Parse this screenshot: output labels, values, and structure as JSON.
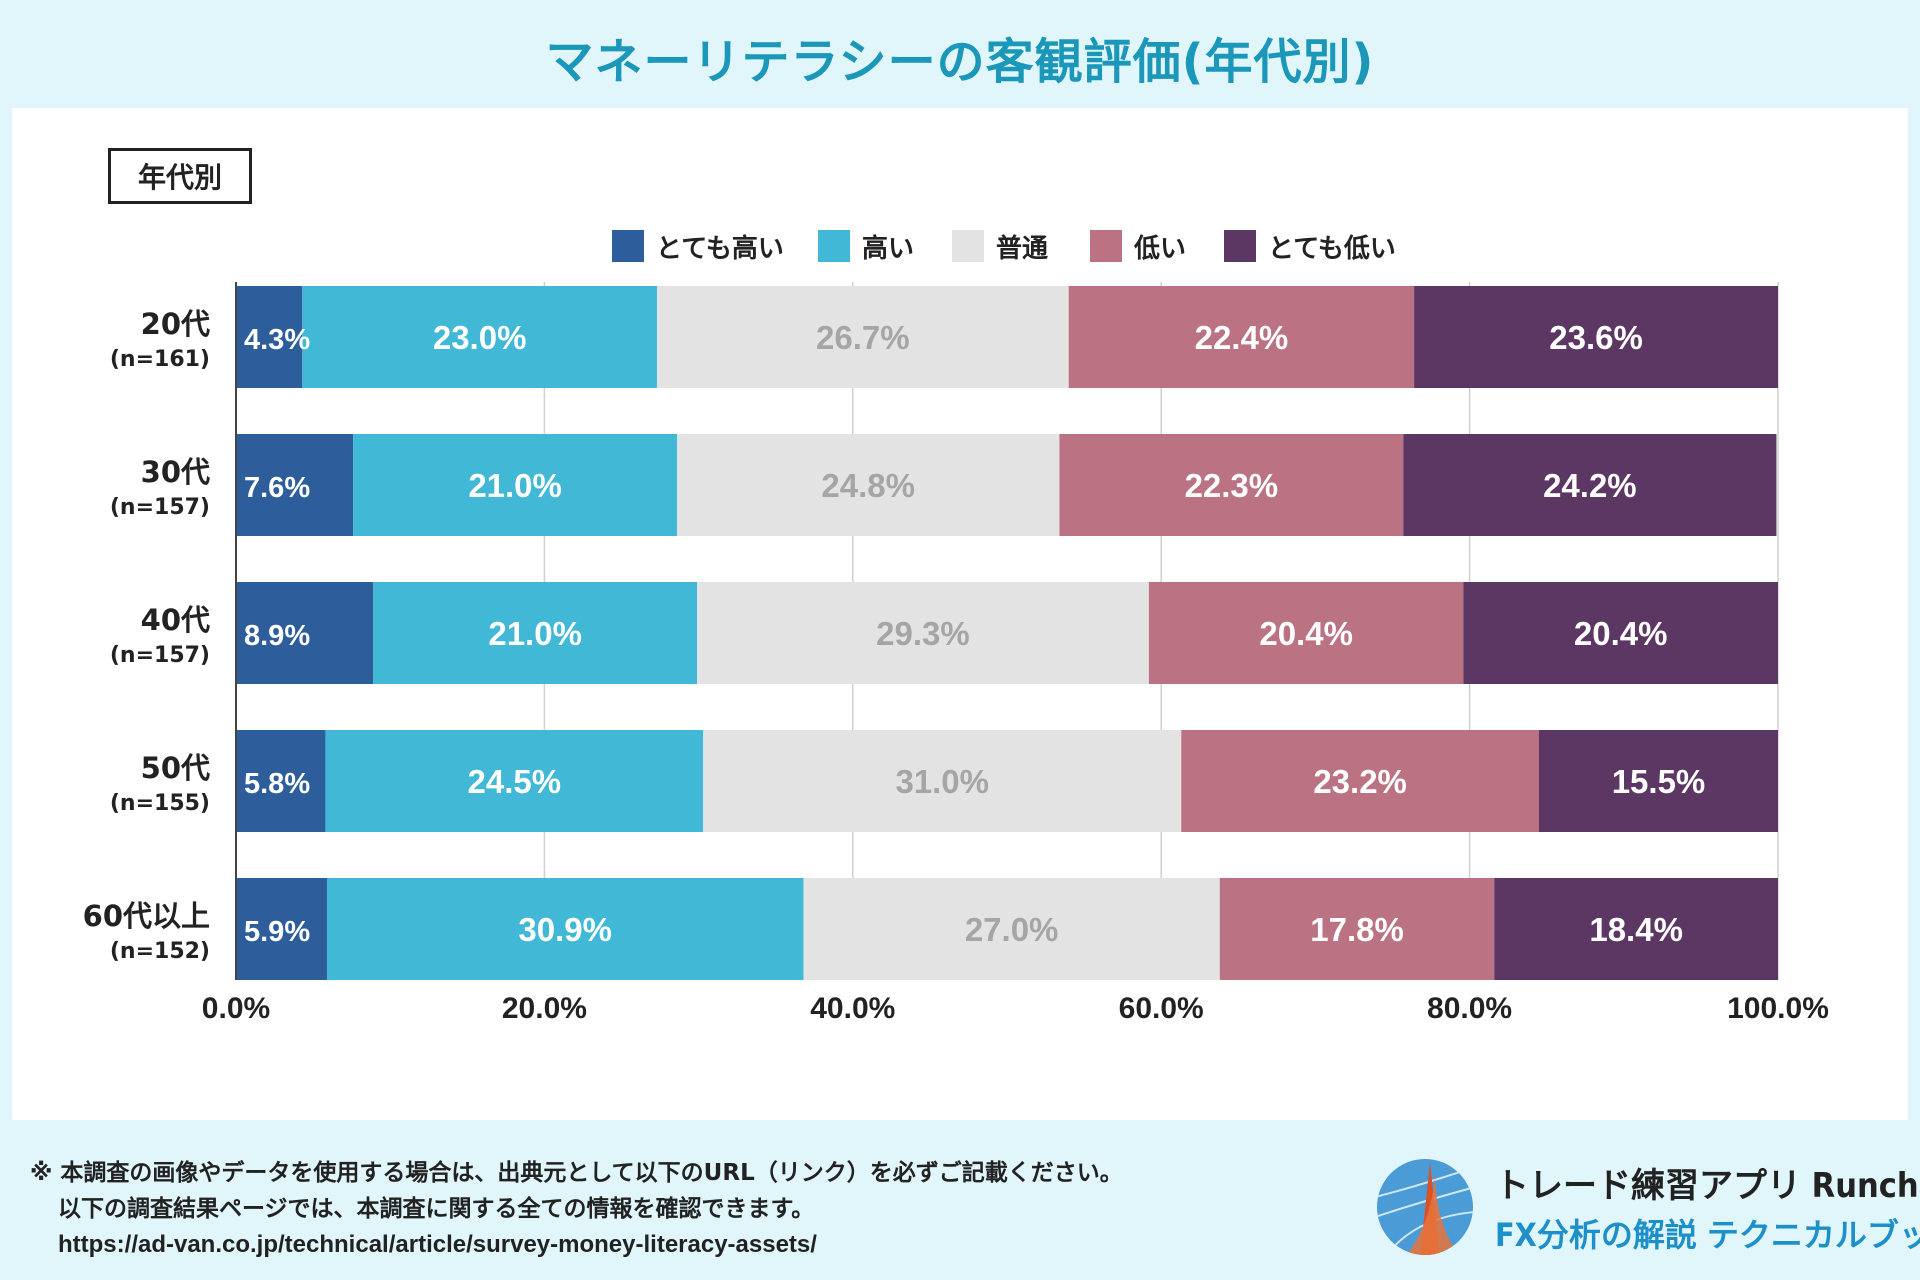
{
  "page_title": "マネーリテラシーの客観評価(年代別)",
  "tag_label": "年代別",
  "colors": {
    "background": "#e0f6fb",
    "title": "#1b97b9",
    "series": [
      "#2d5e9b",
      "#40b8d6",
      "#e3e3e3",
      "#bb7283",
      "#5c3763"
    ],
    "label_light": "#ffffff",
    "label_dark": "#a5a5a5"
  },
  "chart_data": {
    "type": "bar",
    "orientation": "horizontal",
    "stacked": true,
    "categories": [
      "20代",
      "30代",
      "40代",
      "50代",
      "60代以上"
    ],
    "sample_sizes": [
      "(n=161)",
      "(n=157)",
      "(n=157)",
      "(n=155)",
      "(n=152)"
    ],
    "series": [
      {
        "name": "とても高い",
        "values": [
          4.3,
          7.6,
          8.9,
          5.8,
          5.9
        ]
      },
      {
        "name": "高い",
        "values": [
          23.0,
          21.0,
          21.0,
          24.5,
          30.9
        ]
      },
      {
        "name": "普通",
        "values": [
          26.7,
          24.8,
          29.3,
          31.0,
          27.0
        ]
      },
      {
        "name": "低い",
        "values": [
          22.4,
          22.3,
          20.4,
          23.2,
          17.8
        ]
      },
      {
        "name": "とても低い",
        "values": [
          23.6,
          24.2,
          20.4,
          15.5,
          18.4
        ]
      }
    ],
    "xlim": [
      0,
      100
    ],
    "x_ticks": [
      "0.0%",
      "20.0%",
      "40.0%",
      "60.0%",
      "80.0%",
      "100.0%"
    ],
    "value_format": "%",
    "legend_position": "top",
    "grid": "vertical"
  },
  "footer": {
    "note_line1": "※ 本調査の画像やデータを使用する場合は、出典元として以下のURL（リンク）を必ずご記載ください。",
    "note_line2": "以下の調査結果ページでは、本調査に関する全ての情報を確認できます。",
    "url": "https://ad-van.co.jp/technical/article/survey-money-literacy-assets/"
  },
  "brand": {
    "name": "トレード練習アプリ  Runcha",
    "sub": "FX分析の解説  テクニカルブック"
  }
}
